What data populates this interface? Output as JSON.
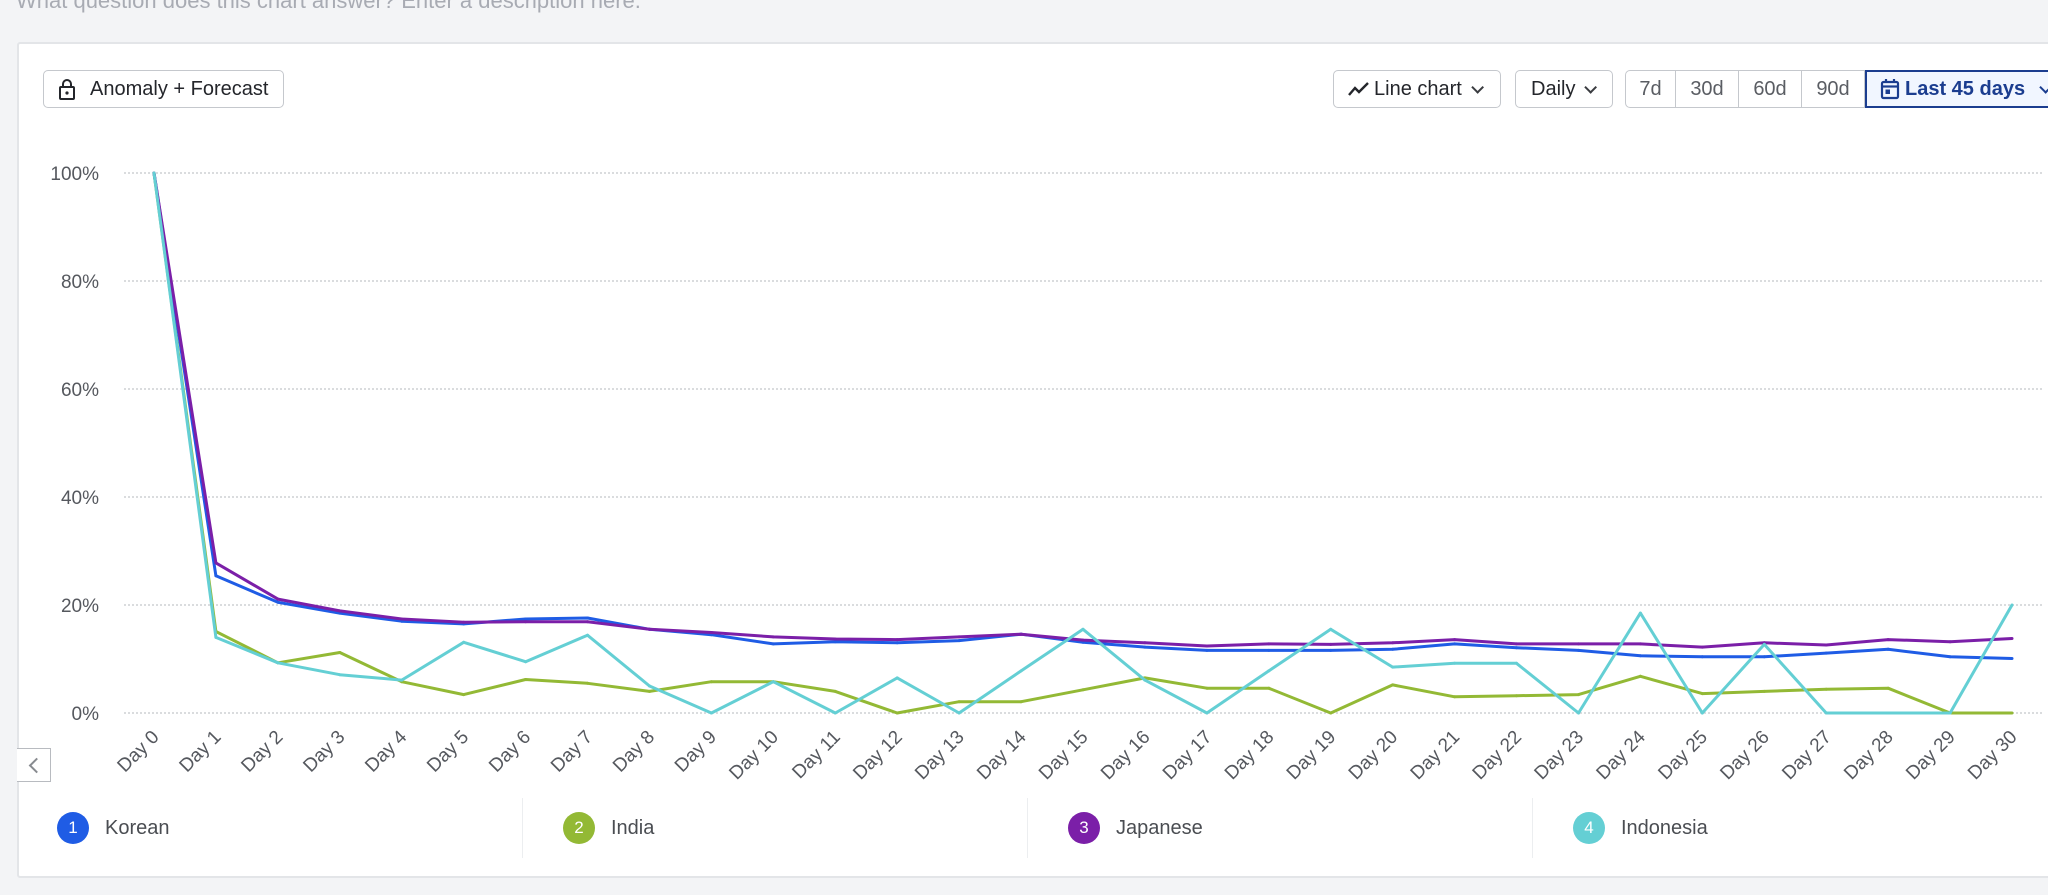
{
  "description_placeholder": "What question does this chart answer? Enter a description here.",
  "toolbar": {
    "anomaly_label": "Anomaly + Forecast",
    "chart_type_label": "Line chart",
    "interval_label": "Daily",
    "ranges": [
      "7d",
      "30d",
      "60d",
      "90d"
    ],
    "active_range_label": "Last 45 days"
  },
  "legend": [
    {
      "index": "1",
      "name": "Korean",
      "color": "#1f5ce5"
    },
    {
      "index": "2",
      "name": "India",
      "color": "#93b935"
    },
    {
      "index": "3",
      "name": "Japanese",
      "color": "#7b1fa8"
    },
    {
      "index": "4",
      "name": "Indonesia",
      "color": "#64cfd4"
    }
  ],
  "chart_data": {
    "type": "line",
    "title": "",
    "xlabel": "",
    "ylabel": "",
    "ylim": [
      0,
      100
    ],
    "yticks": [
      "0%",
      "20%",
      "40%",
      "60%",
      "80%",
      "100%"
    ],
    "ytick_values": [
      0,
      20,
      40,
      60,
      80,
      100
    ],
    "grid": true,
    "legend_position": "bottom",
    "categories": [
      "Day 0",
      "Day 1",
      "Day 2",
      "Day 3",
      "Day 4",
      "Day 5",
      "Day 6",
      "Day 7",
      "Day 8",
      "Day 9",
      "Day 10",
      "Day 11",
      "Day 12",
      "Day 13",
      "Day 14",
      "Day 15",
      "Day 16",
      "Day 17",
      "Day 18",
      "Day 19",
      "Day 20",
      "Day 21",
      "Day 22",
      "Day 23",
      "Day 24",
      "Day 25",
      "Day 26",
      "Day 27",
      "Day 28",
      "Day 29",
      "Day 30"
    ],
    "series": [
      {
        "name": "Korean",
        "color": "#1f5ce5",
        "values": [
          100,
          25.4,
          20.5,
          18.5,
          17.0,
          16.5,
          17.4,
          17.6,
          15.5,
          14.5,
          12.8,
          13.2,
          13.0,
          13.4,
          14.6,
          13.1,
          12.2,
          11.6,
          11.6,
          11.6,
          11.8,
          12.8,
          12.1,
          11.6,
          10.6,
          10.4,
          10.4,
          11.1,
          11.8,
          10.4,
          10.1
        ]
      },
      {
        "name": "India",
        "color": "#93b935",
        "values": [
          100,
          15.1,
          9.3,
          11.2,
          5.8,
          3.4,
          6.2,
          5.5,
          4.0,
          5.8,
          5.8,
          4.0,
          0,
          2.1,
          2.1,
          4.3,
          6.5,
          4.6,
          4.6,
          0,
          5.2,
          3.0,
          3.2,
          3.4,
          6.8,
          3.6,
          4.0,
          4.4,
          4.6,
          0,
          0
        ]
      },
      {
        "name": "Japanese",
        "color": "#7b1fa8",
        "values": [
          100,
          27.8,
          21.1,
          18.9,
          17.4,
          16.8,
          16.9,
          16.9,
          15.5,
          14.9,
          14.1,
          13.7,
          13.6,
          14.1,
          14.6,
          13.5,
          13.0,
          12.4,
          12.8,
          12.7,
          13.0,
          13.6,
          12.8,
          12.8,
          12.8,
          12.2,
          13.0,
          12.6,
          13.6,
          13.2,
          13.8
        ]
      },
      {
        "name": "Indonesia",
        "color": "#64cfd4",
        "values": [
          100,
          14.0,
          9.3,
          7.1,
          6.1,
          13.1,
          9.5,
          14.4,
          5.0,
          0,
          5.8,
          0,
          6.5,
          0,
          7.8,
          15.5,
          6.1,
          0,
          7.8,
          15.5,
          8.5,
          9.2,
          9.2,
          0,
          18.5,
          0,
          12.7,
          0,
          0,
          0,
          20.0
        ]
      }
    ]
  }
}
